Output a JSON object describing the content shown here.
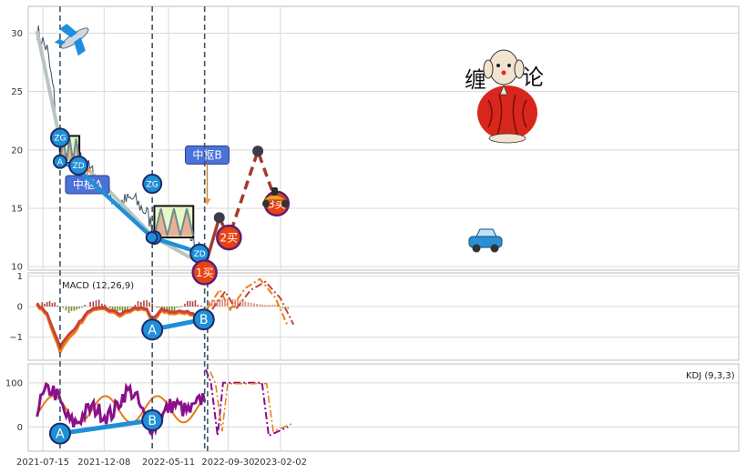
{
  "chart_data": [
    {
      "panel": "price",
      "type": "line",
      "x_ticks": [
        "2021-07-15",
        "2021-12-08",
        "2022-05-11",
        "2022-09-30",
        "2023-02-02"
      ],
      "y_ticks": [
        10,
        15,
        20,
        25,
        30
      ],
      "ylim": [
        9.7,
        32.3
      ],
      "grid": true,
      "pivots": [
        {
          "label": "中枢A",
          "start": "2021-08-25",
          "end": "2021-10-10",
          "zg": 21.2,
          "zd": 18.9
        },
        {
          "label": "中枢B",
          "start": "2022-04-07",
          "end": "2022-07-09",
          "zg": 15.2,
          "zd": 12.5
        }
      ],
      "pivot_markers": [
        "ZG",
        "ZD",
        "A",
        "B"
      ],
      "signals": [
        {
          "label": "1买",
          "date": "2022-08-05",
          "value": 9.9
        },
        {
          "label": "2买",
          "date": "2022-10-02",
          "value": 12.5
        },
        {
          "label": "3买",
          "date": "2023-01-24",
          "value": 15.4
        }
      ],
      "logo_text": [
        "缠",
        "论"
      ]
    },
    {
      "panel": "macd",
      "type": "line",
      "title": "MACD (12,26,9)",
      "y_ticks": [
        1,
        0,
        -1
      ],
      "ylim": [
        -1.75,
        1.1
      ],
      "divergence_points": [
        "A",
        "B"
      ]
    },
    {
      "panel": "kdj",
      "type": "line",
      "title": "KDJ (9,3,3)",
      "y_ticks": [
        100,
        0
      ],
      "ylim": [
        -55,
        143
      ],
      "divergence_points": [
        "A",
        "B"
      ]
    }
  ],
  "colors": {
    "bi": "#1f8fd6",
    "segment": "#b9c5bf",
    "forecast": "#a33a2d",
    "pivot_fill": "#e9f7c9",
    "macd_dif": "#f07d11",
    "macd_dea": "#c8423a",
    "kdj_k": "#8a0f8a",
    "kdj_d": "#e57a12",
    "bar_pos": "#b0463f",
    "bar_neg": "#6f8f22"
  }
}
